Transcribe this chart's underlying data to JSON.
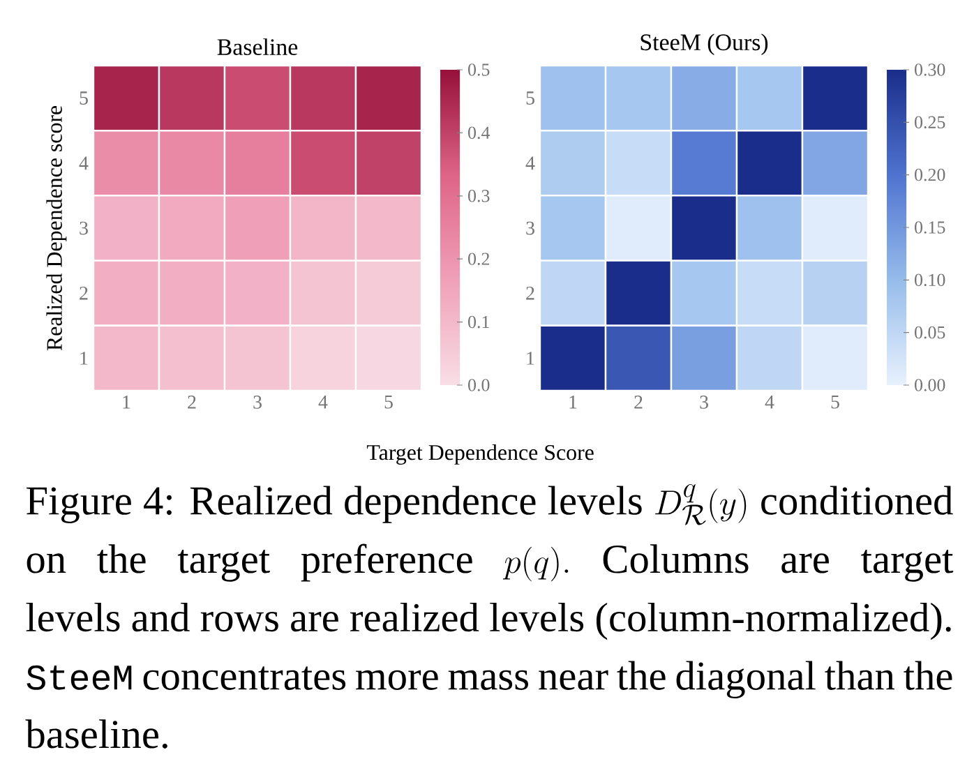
{
  "chart_data": [
    {
      "type": "heatmap",
      "title": "Baseline",
      "xlabel": "Target Dependence Score",
      "ylabel": "Realized Dependence score",
      "categories": [
        "1",
        "2",
        "3",
        "4",
        "5"
      ],
      "y_categories": [
        "5",
        "4",
        "3",
        "2",
        "1"
      ],
      "cells": [
        [
          0.46,
          0.42,
          0.38,
          0.42,
          0.46
        ],
        [
          0.22,
          0.23,
          0.26,
          0.38,
          0.4
        ],
        [
          0.12,
          0.14,
          0.17,
          0.11,
          0.1
        ],
        [
          0.13,
          0.13,
          0.12,
          0.07,
          0.05
        ],
        [
          0.1,
          0.08,
          0.07,
          0.03,
          0.02
        ]
      ],
      "clim": [
        0,
        0.5
      ],
      "cticks": [
        {
          "value": 0,
          "label": "0.0"
        },
        {
          "value": 0.1,
          "label": "0.1"
        },
        {
          "value": 0.2,
          "label": "0.2"
        },
        {
          "value": 0.3,
          "label": "0.3"
        },
        {
          "value": 0.4,
          "label": "0.4"
        },
        {
          "value": 0.5,
          "label": "0.5"
        }
      ],
      "annotations": [
        "Figure 4: Realized dependence levels",
        "D^{q}_{\\mathcal{R}}(y)",
        "conditioned on the target preference",
        "p(q).",
        "Columns are target levels and rows are realized levels (column-normalized).",
        "SteeM",
        "concentrates more mass near the diagonal than the baseline."
      ]
    },
    {
      "type": "heatmap",
      "title": "SteeM (Ours)",
      "categories": [
        "1",
        "2",
        "3",
        "4",
        "5"
      ],
      "y_categories": [
        "5",
        "4",
        "3",
        "2",
        "1"
      ],
      "cells": [
        [
          0.09,
          0.08,
          0.12,
          0.08,
          0.3
        ],
        [
          0.07,
          0.04,
          0.19,
          0.3,
          0.13
        ],
        [
          0.08,
          0.01,
          0.3,
          0.09,
          0.01
        ],
        [
          0.05,
          0.3,
          0.08,
          0.04,
          0.06
        ],
        [
          0.3,
          0.24,
          0.14,
          0.05,
          0.01
        ]
      ],
      "clim": [
        0,
        0.3
      ],
      "cticks": [
        {
          "value": 0,
          "label": "0.00"
        },
        {
          "value": 0.05,
          "label": "0.05"
        },
        {
          "value": 0.1,
          "label": "0.10"
        },
        {
          "value": 0.15,
          "label": "0.15"
        },
        {
          "value": 0.2,
          "label": "0.20"
        },
        {
          "value": 0.25,
          "label": "0.25"
        },
        {
          "value": 0.3,
          "label": "0.30"
        }
      ]
    }
  ]
}
